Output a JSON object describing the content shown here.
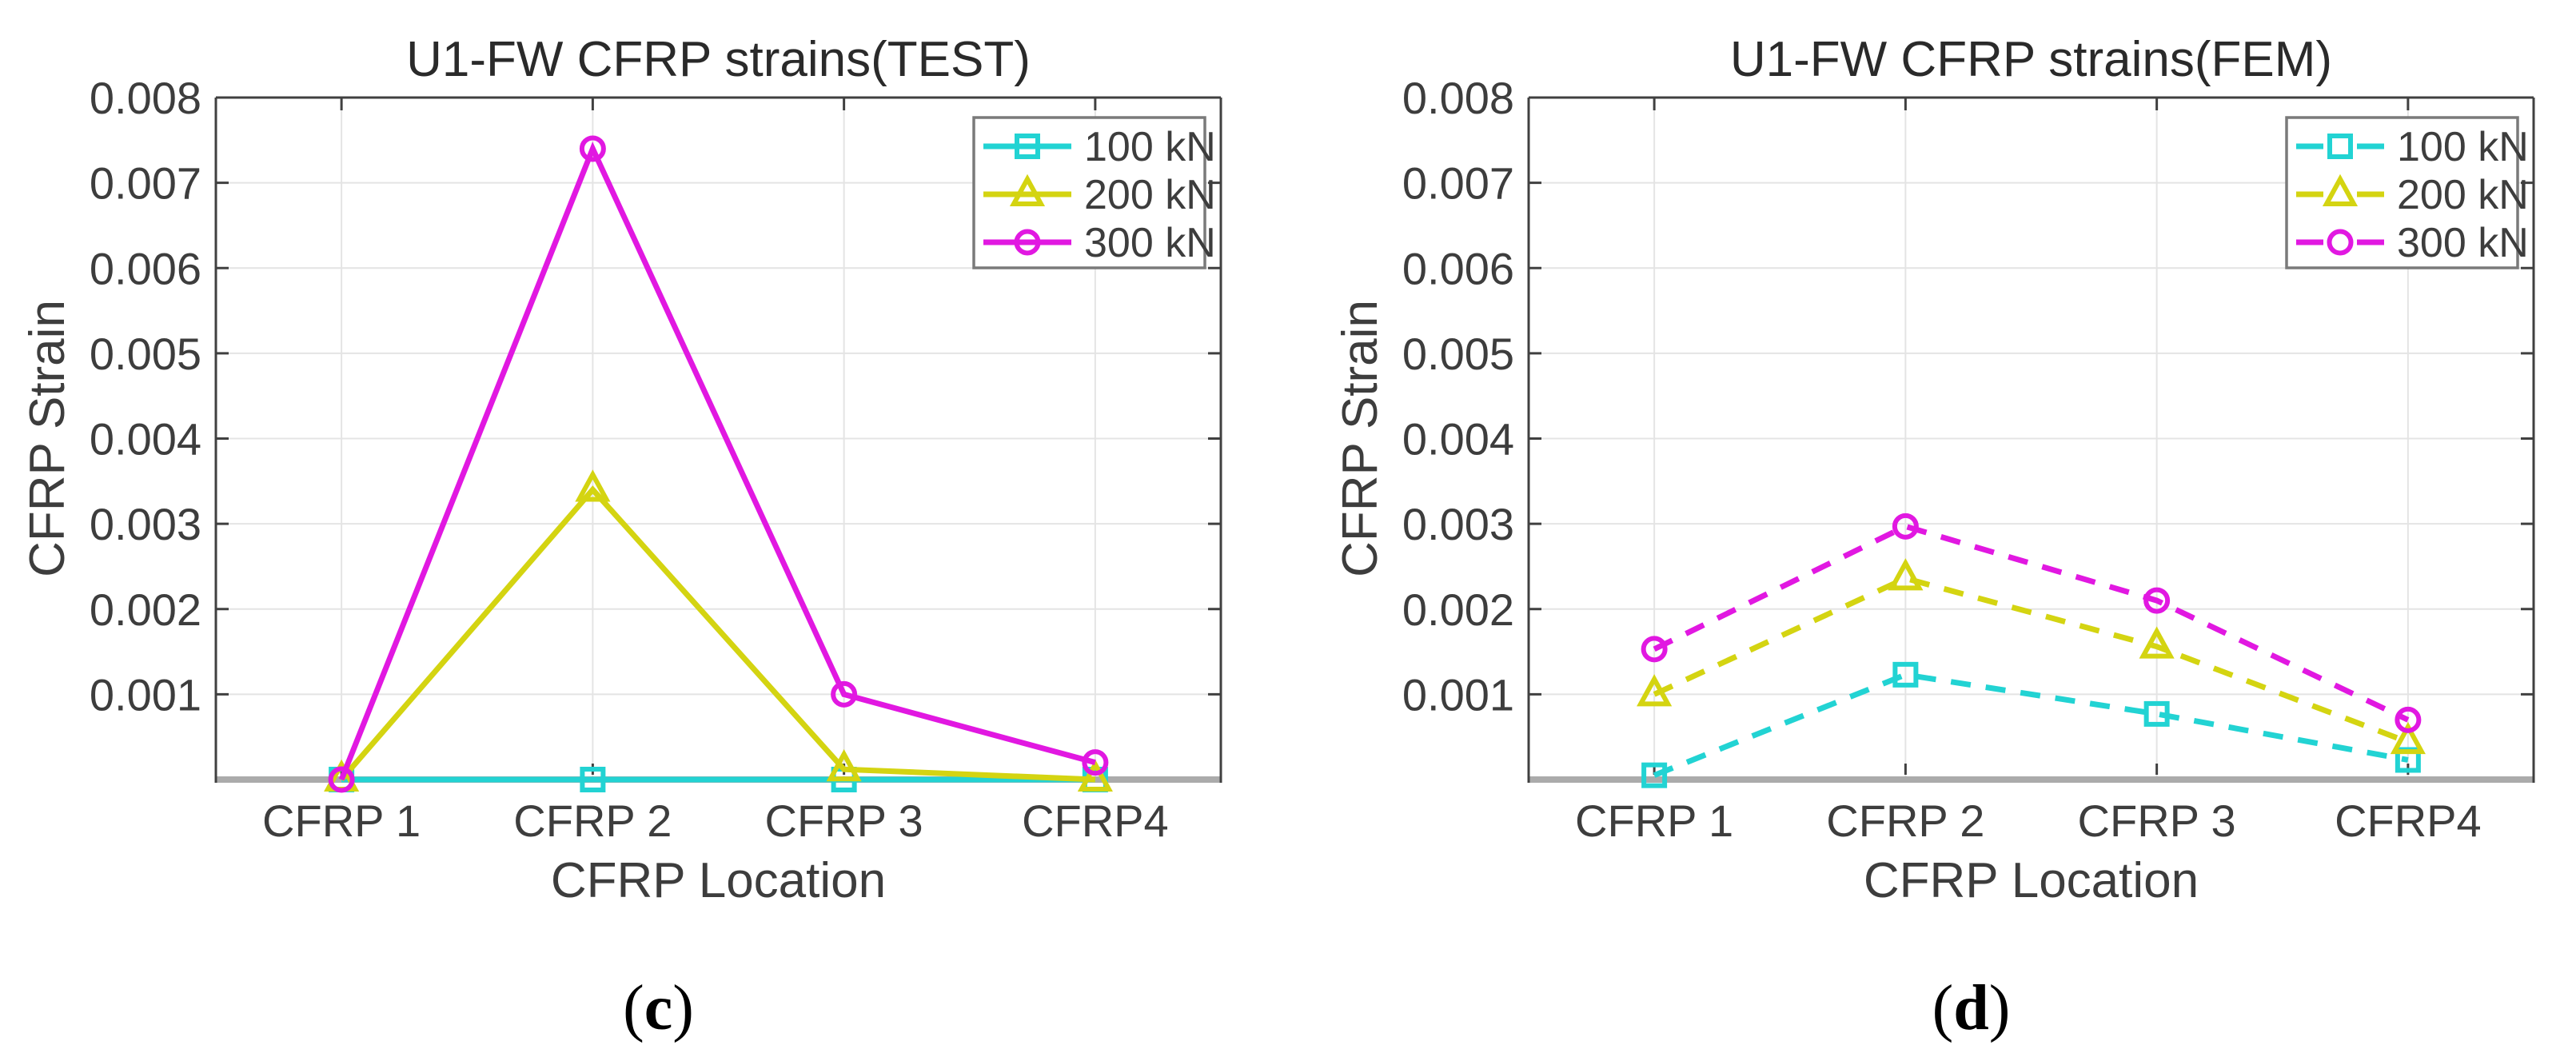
{
  "figure": {
    "background": "#ffffff",
    "captions": {
      "left": "(c)",
      "right": "(d)"
    },
    "colors": {
      "cyan": "#22d3d3",
      "yellow": "#d4d411",
      "magenta": "#e118e1",
      "axis": "#404040",
      "grid": "#e4e4e4",
      "baseline_band": "#ababab",
      "text": "#3d3d3d",
      "title_text": "#2a2a2a",
      "legend_border": "#7a7a7a"
    }
  },
  "chart_data": [
    {
      "type": "line",
      "title": "U1-FW CFRP strains(TEST)",
      "xlabel": "CFRP Location",
      "ylabel": "CFRP Strain",
      "caption": "(c)",
      "categories": [
        "CFRP 1",
        "CFRP 2",
        "CFRP 3",
        "CFRP4"
      ],
      "y_tick_labels": [
        "0.001",
        "0.002",
        "0.003",
        "0.004",
        "0.005",
        "0.006",
        "0.007",
        "0.008"
      ],
      "ylim": [
        0,
        0.008
      ],
      "grid": true,
      "line_style": "solid",
      "legend_position": "top-right",
      "series": [
        {
          "name": "100 kN",
          "color_key": "cyan",
          "marker": "square",
          "values": [
            0.0,
            0.0,
            0.0,
            0.0
          ]
        },
        {
          "name": "200 kN",
          "color_key": "yellow",
          "marker": "triangle",
          "values": [
            0.0,
            0.0034,
            0.00012,
            0.0
          ]
        },
        {
          "name": "300 kN",
          "color_key": "magenta",
          "marker": "circle",
          "values": [
            0.0,
            0.0074,
            0.001,
            0.0002
          ]
        }
      ]
    },
    {
      "type": "line",
      "title": "U1-FW CFRP strains(FEM)",
      "xlabel": "CFRP Location",
      "ylabel": "CFRP Strain",
      "caption": "(d)",
      "categories": [
        "CFRP 1",
        "CFRP 2",
        "CFRP 3",
        "CFRP4"
      ],
      "y_tick_labels": [
        "0.001",
        "0.002",
        "0.003",
        "0.004",
        "0.005",
        "0.006",
        "0.007",
        "0.008"
      ],
      "ylim": [
        0,
        0.008
      ],
      "grid": true,
      "line_style": "dashed",
      "legend_position": "top-right",
      "series": [
        {
          "name": "100 kN",
          "color_key": "cyan",
          "marker": "square",
          "values": [
            5e-05,
            0.00123,
            0.00077,
            0.00023
          ]
        },
        {
          "name": "200 kN",
          "color_key": "yellow",
          "marker": "triangle",
          "values": [
            0.001,
            0.00236,
            0.00156,
            0.00044
          ]
        },
        {
          "name": "300 kN",
          "color_key": "magenta",
          "marker": "circle",
          "values": [
            0.00153,
            0.00297,
            0.0021,
            0.0007
          ]
        }
      ]
    }
  ]
}
